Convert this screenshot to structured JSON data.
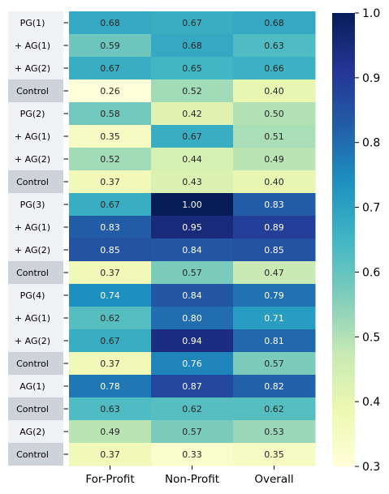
{
  "chart_data": {
    "type": "heatmap",
    "columns": [
      "For-Profit",
      "Non-Profit",
      "Overall"
    ],
    "rows": [
      {
        "label": "PG(1)",
        "shaded": false,
        "values": [
          0.68,
          0.67,
          0.68
        ]
      },
      {
        "label": "+ AG(1)",
        "shaded": false,
        "values": [
          0.59,
          0.68,
          0.63
        ]
      },
      {
        "label": "+ AG(2)",
        "shaded": false,
        "values": [
          0.67,
          0.65,
          0.66
        ]
      },
      {
        "label": "Control",
        "shaded": true,
        "values": [
          0.26,
          0.52,
          0.4
        ]
      },
      {
        "label": "PG(2)",
        "shaded": false,
        "values": [
          0.58,
          0.42,
          0.5
        ]
      },
      {
        "label": "+ AG(1)",
        "shaded": false,
        "values": [
          0.35,
          0.67,
          0.51
        ]
      },
      {
        "label": "+ AG(2)",
        "shaded": false,
        "values": [
          0.52,
          0.44,
          0.49
        ]
      },
      {
        "label": "Control",
        "shaded": true,
        "values": [
          0.37,
          0.43,
          0.4
        ]
      },
      {
        "label": "PG(3)",
        "shaded": false,
        "values": [
          0.67,
          1.0,
          0.83
        ]
      },
      {
        "label": "+ AG(1)",
        "shaded": false,
        "values": [
          0.83,
          0.95,
          0.89
        ]
      },
      {
        "label": "+ AG(2)",
        "shaded": false,
        "values": [
          0.85,
          0.84,
          0.85
        ]
      },
      {
        "label": "Control",
        "shaded": true,
        "values": [
          0.37,
          0.57,
          0.47
        ]
      },
      {
        "label": "PG(4)",
        "shaded": false,
        "values": [
          0.74,
          0.84,
          0.79
        ]
      },
      {
        "label": "+ AG(1)",
        "shaded": false,
        "values": [
          0.62,
          0.8,
          0.71
        ]
      },
      {
        "label": "+ AG(2)",
        "shaded": false,
        "values": [
          0.67,
          0.94,
          0.81
        ]
      },
      {
        "label": "Control",
        "shaded": true,
        "values": [
          0.37,
          0.76,
          0.57
        ]
      },
      {
        "label": "AG(1)",
        "shaded": false,
        "values": [
          0.78,
          0.87,
          0.82
        ]
      },
      {
        "label": "Control",
        "shaded": true,
        "values": [
          0.63,
          0.62,
          0.62
        ]
      },
      {
        "label": "AG(2)",
        "shaded": false,
        "values": [
          0.49,
          0.57,
          0.53
        ]
      },
      {
        "label": "Control",
        "shaded": true,
        "values": [
          0.37,
          0.33,
          0.35
        ]
      }
    ],
    "colorbar": {
      "range": [
        0.3,
        1.0
      ],
      "ticks": [
        "1.0",
        "0.9",
        "0.8",
        "0.7",
        "0.6",
        "0.5",
        "0.4",
        "0.3"
      ],
      "colormap": "YlGnBu"
    },
    "colors": {
      "label_bg": "#f0f1f4",
      "control_bg": "#ced2d9"
    }
  }
}
